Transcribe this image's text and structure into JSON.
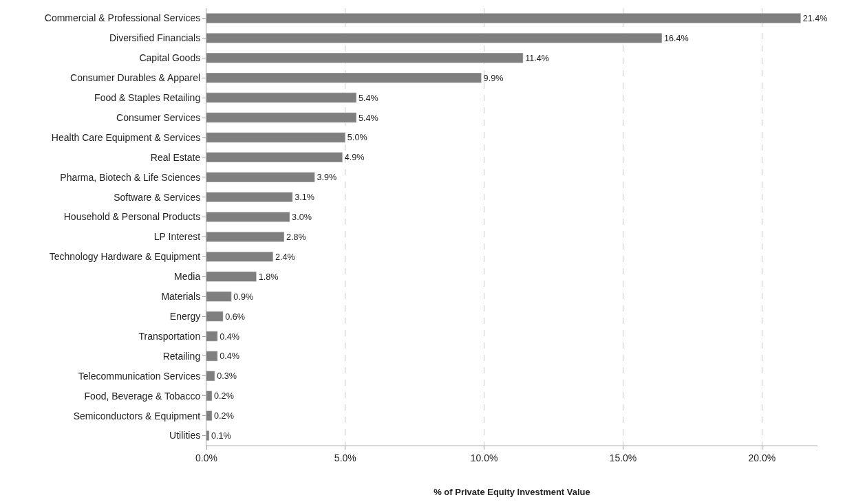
{
  "chart_data": {
    "type": "bar",
    "orientation": "horizontal",
    "xlabel": "% of Private Equity Investment Value",
    "categories": [
      "Commercial & Professional Services",
      "Diversified Financials",
      "Capital Goods",
      "Consumer Durables & Apparel",
      "Food & Staples Retailing",
      "Consumer Services",
      "Health Care Equipment & Services",
      "Real Estate",
      "Pharma, Biotech & Life Sciences",
      "Software & Services",
      "Household & Personal Products",
      "LP Interest",
      "Technology Hardware & Equipment",
      "Media",
      "Materials",
      "Energy",
      "Transportation",
      "Retailing",
      "Telecommunication Services",
      "Food, Beverage & Tobacco",
      "Semiconductors & Equipment",
      "Utilities"
    ],
    "values": [
      21.4,
      16.4,
      11.4,
      9.9,
      5.4,
      5.4,
      5.0,
      4.9,
      3.9,
      3.1,
      3.0,
      2.8,
      2.4,
      1.8,
      0.9,
      0.6,
      0.4,
      0.4,
      0.3,
      0.2,
      0.2,
      0.1
    ],
    "value_labels": [
      "21.4%",
      "16.4%",
      "11.4%",
      "9.9%",
      "5.4%",
      "5.4%",
      "5.0%",
      "4.9%",
      "3.9%",
      "3.1%",
      "3.0%",
      "2.8%",
      "2.4%",
      "1.8%",
      "0.9%",
      "0.6%",
      "0.4%",
      "0.4%",
      "0.3%",
      "0.2%",
      "0.2%",
      "0.1%"
    ],
    "color": "#7f7f7f",
    "xlim": [
      0,
      22
    ],
    "xticks": [
      {
        "value": 0,
        "label": "0.0%"
      },
      {
        "value": 5,
        "label": "5.0%"
      },
      {
        "value": 10,
        "label": "10.0%"
      },
      {
        "value": 15,
        "label": "15.0%"
      },
      {
        "value": 20,
        "label": "20.0%"
      }
    ],
    "grid": "x",
    "legend": false
  }
}
